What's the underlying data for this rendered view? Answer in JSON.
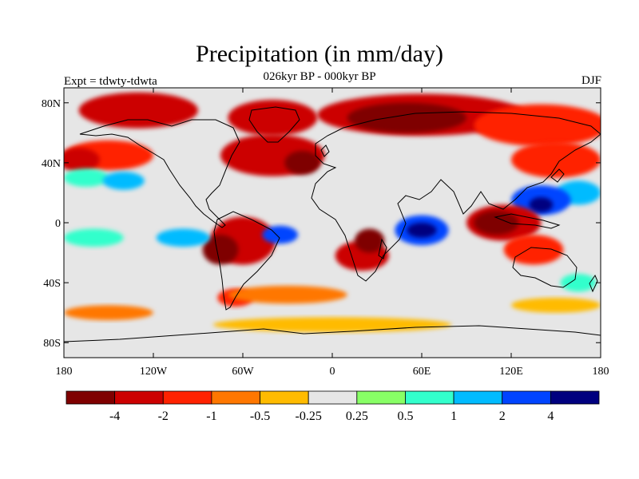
{
  "figure": {
    "title": "Precipitation (in mm/day)",
    "subtitle": "026kyr BP - 000kyr BP",
    "left_label": "Expt = tdwty-tdwta",
    "right_label": "DJF"
  },
  "map": {
    "lon_range": [
      -180,
      180
    ],
    "lat_range": [
      -90,
      90
    ],
    "lon_ticks": [
      {
        "value": -180,
        "label": "180"
      },
      {
        "value": -120,
        "label": "120W"
      },
      {
        "value": -60,
        "label": "60W"
      },
      {
        "value": 0,
        "label": "0"
      },
      {
        "value": 60,
        "label": "60E"
      },
      {
        "value": 120,
        "label": "120E"
      },
      {
        "value": 180,
        "label": "180"
      }
    ],
    "lat_ticks": [
      {
        "value": 80,
        "label": "80N"
      },
      {
        "value": 40,
        "label": "40N"
      },
      {
        "value": 0,
        "label": "0"
      },
      {
        "value": -40,
        "label": "40S"
      },
      {
        "value": -80,
        "label": "80S"
      }
    ],
    "neutral_color": "#e6e6e6",
    "anomalies": [
      {
        "lon": -130,
        "lat": 75,
        "rx": 40,
        "ry": 12,
        "level": 1
      },
      {
        "lon": -40,
        "lat": 70,
        "rx": 30,
        "ry": 12,
        "level": 1
      },
      {
        "lon": 60,
        "lat": 72,
        "rx": 70,
        "ry": 14,
        "level": 1
      },
      {
        "lon": 140,
        "lat": 65,
        "rx": 45,
        "ry": 14,
        "level": 2
      },
      {
        "lon": 50,
        "lat": 70,
        "rx": 40,
        "ry": 10,
        "level": 0
      },
      {
        "lon": -150,
        "lat": 45,
        "rx": 30,
        "ry": 10,
        "level": 2
      },
      {
        "lon": -170,
        "lat": 42,
        "rx": 14,
        "ry": 8,
        "level": 1
      },
      {
        "lon": -165,
        "lat": 30,
        "rx": 15,
        "ry": 6,
        "level": 7
      },
      {
        "lon": -140,
        "lat": 28,
        "rx": 14,
        "ry": 6,
        "level": 8
      },
      {
        "lon": -40,
        "lat": 45,
        "rx": 35,
        "ry": 14,
        "level": 1
      },
      {
        "lon": -20,
        "lat": 40,
        "rx": 12,
        "ry": 8,
        "level": 0
      },
      {
        "lon": 150,
        "lat": 42,
        "rx": 30,
        "ry": 12,
        "level": 2
      },
      {
        "lon": 165,
        "lat": 20,
        "rx": 15,
        "ry": 8,
        "level": 8
      },
      {
        "lon": 140,
        "lat": 15,
        "rx": 20,
        "ry": 10,
        "level": 9
      },
      {
        "lon": 140,
        "lat": 12,
        "rx": 8,
        "ry": 5,
        "level": 10
      },
      {
        "lon": -60,
        "lat": -12,
        "rx": 22,
        "ry": 16,
        "level": 1
      },
      {
        "lon": -75,
        "lat": -18,
        "rx": 12,
        "ry": 10,
        "level": 0
      },
      {
        "lon": -160,
        "lat": -10,
        "rx": 20,
        "ry": 6,
        "level": 7
      },
      {
        "lon": -100,
        "lat": -10,
        "rx": 18,
        "ry": 6,
        "level": 8
      },
      {
        "lon": -35,
        "lat": -8,
        "rx": 12,
        "ry": 6,
        "level": 9
      },
      {
        "lon": 20,
        "lat": -22,
        "rx": 18,
        "ry": 10,
        "level": 1
      },
      {
        "lon": 25,
        "lat": -12,
        "rx": 10,
        "ry": 8,
        "level": 0
      },
      {
        "lon": 60,
        "lat": -5,
        "rx": 18,
        "ry": 10,
        "level": 9
      },
      {
        "lon": 60,
        "lat": -5,
        "rx": 10,
        "ry": 5,
        "level": 10
      },
      {
        "lon": 115,
        "lat": 0,
        "rx": 25,
        "ry": 12,
        "level": 1
      },
      {
        "lon": 110,
        "lat": 0,
        "rx": 15,
        "ry": 8,
        "level": 0
      },
      {
        "lon": 135,
        "lat": -18,
        "rx": 20,
        "ry": 10,
        "level": 2
      },
      {
        "lon": 165,
        "lat": -40,
        "rx": 12,
        "ry": 6,
        "level": 7
      },
      {
        "lon": -65,
        "lat": -50,
        "rx": 12,
        "ry": 6,
        "level": 2
      },
      {
        "lon": -30,
        "lat": -48,
        "rx": 40,
        "ry": 6,
        "level": 3
      },
      {
        "lon": 0,
        "lat": -68,
        "rx": 80,
        "ry": 5,
        "level": 4
      },
      {
        "lon": -150,
        "lat": -60,
        "rx": 30,
        "ry": 5,
        "level": 3
      },
      {
        "lon": 150,
        "lat": -55,
        "rx": 30,
        "ry": 5,
        "level": 4
      }
    ]
  },
  "chart_data": {
    "type": "heatmap",
    "title": "Precipitation (in mm/day)",
    "subtitle": "026kyr BP - 000kyr BP",
    "variable": "Precipitation",
    "units": "mm/day",
    "season": "DJF",
    "experiment": "Expt = tdwty-tdwta",
    "xlim": [
      -180,
      180
    ],
    "ylim": [
      -90,
      90
    ],
    "colorbar": {
      "boundaries": [
        -4,
        -2,
        -1,
        -0.5,
        -0.25,
        0.25,
        0.5,
        1,
        2,
        4
      ],
      "labels": [
        "-4",
        "-2",
        "-1",
        "-0.5",
        "-0.25",
        "0.25",
        "0.5",
        "1",
        "2",
        "4"
      ],
      "colors": [
        "#7f0000",
        "#cc0000",
        "#ff2200",
        "#ff7700",
        "#ffbb00",
        "#e6e6e6",
        "#88ff66",
        "#33ffcc",
        "#00bbff",
        "#0044ff",
        "#00007f"
      ]
    }
  }
}
